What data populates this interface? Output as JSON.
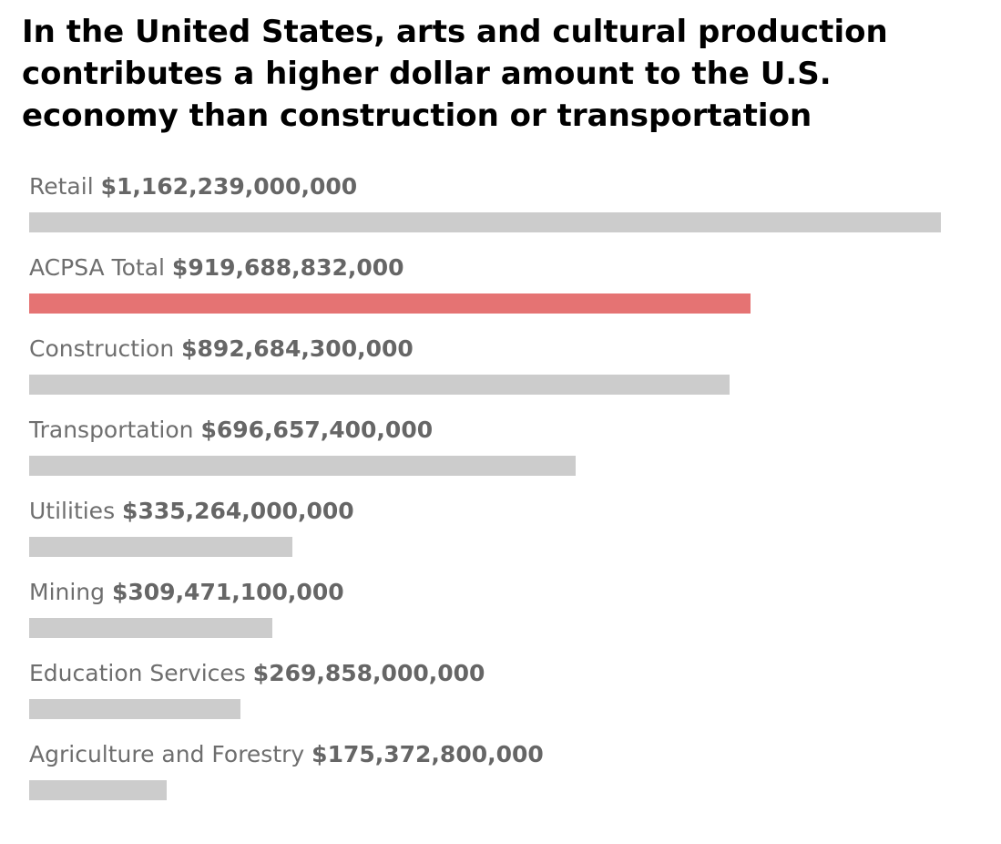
{
  "title": "In the United States, arts and cultural production contributes a higher dollar amount to the U.S. economy than construction or transportation",
  "colors": {
    "default_bar": "#cccccc",
    "highlight_bar": "#e57373",
    "label_text": "#6e6e6e",
    "value_text": "#666666"
  },
  "chart_data": {
    "type": "bar",
    "orientation": "horizontal",
    "title": "In the United States, arts and cultural production contributes a higher dollar amount to the U.S. economy than construction or transportation",
    "xlabel": "",
    "ylabel": "",
    "grid": false,
    "xlim": [
      0,
      1162239000000
    ],
    "highlight_category": "ACPSA Total",
    "categories": [
      "Retail",
      "ACPSA Total",
      "Construction",
      "Transportation",
      "Utilities",
      "Mining",
      "Education Services",
      "Agriculture and Forestry"
    ],
    "values": [
      1162239000000,
      919688832000,
      892684300000,
      696657400000,
      335264000000,
      309471100000,
      269858000000,
      175372800000
    ],
    "value_labels": [
      "$1,162,239,000,000",
      "$919,688,832,000",
      "$892,684,300,000",
      "$696,657,400,000",
      "$335,264,000,000",
      "$309,471,100,000",
      "$269,858,000,000",
      "$175,372,800,000"
    ]
  }
}
